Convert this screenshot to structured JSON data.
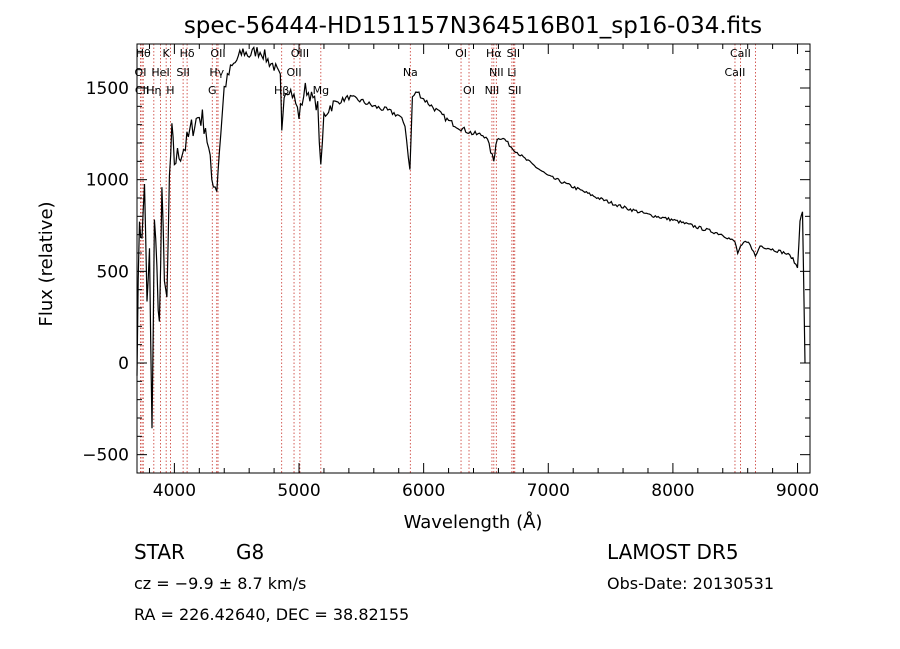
{
  "chart_data": {
    "type": "line",
    "title": "spec-56444-HD151157N364516B01_sp16-034.fits",
    "xlabel": "Wavelength (Å)",
    "ylabel": "Flux (relative)",
    "xlim": [
      3700,
      9100
    ],
    "ylim": [
      -600,
      1740
    ],
    "xticks": [
      4000,
      5000,
      6000,
      7000,
      8000,
      9000
    ],
    "xtick_labels": [
      "4000",
      "5000",
      "6000",
      "7000",
      "8000",
      "9000"
    ],
    "yticks": [
      -500,
      0,
      500,
      1000,
      1500
    ],
    "ytick_labels": [
      "−500",
      "0",
      "500",
      "1000",
      "1500"
    ],
    "grid": false,
    "series": [
      {
        "color": "#000000",
        "x": [
          3700,
          3720,
          3740,
          3760,
          3780,
          3800,
          3820,
          3840,
          3860,
          3880,
          3900,
          3920,
          3940,
          3960,
          3980,
          4000,
          4050,
          4100,
          4150,
          4200,
          4250,
          4300,
          4340,
          4360,
          4400,
          4450,
          4500,
          4550,
          4600,
          4650,
          4700,
          4750,
          4800,
          4850,
          4862,
          4880,
          4920,
          4960,
          5000,
          5050,
          5100,
          5150,
          5175,
          5200,
          5250,
          5300,
          5400,
          5500,
          5600,
          5700,
          5800,
          5850,
          5890,
          5910,
          5950,
          6000,
          6100,
          6200,
          6300,
          6400,
          6500,
          6563,
          6580,
          6600,
          6650,
          6700,
          6800,
          6900,
          7000,
          7200,
          7400,
          7600,
          7800,
          8000,
          8200,
          8400,
          8498,
          8520,
          8542,
          8580,
          8620,
          8662,
          8700,
          8800,
          8900,
          8950,
          9000,
          9020,
          9040,
          9060
        ],
        "y": [
          0,
          800,
          650,
          1000,
          300,
          600,
          -400,
          800,
          500,
          200,
          900,
          500,
          300,
          1000,
          1250,
          1100,
          1150,
          1200,
          1300,
          1350,
          1300,
          1000,
          950,
          1150,
          1500,
          1600,
          1650,
          1700,
          1680,
          1700,
          1700,
          1650,
          1620,
          1550,
          1250,
          1480,
          1500,
          1450,
          1350,
          1500,
          1450,
          1400,
          1050,
          1350,
          1400,
          1420,
          1450,
          1430,
          1400,
          1380,
          1350,
          1300,
          1050,
          1450,
          1480,
          1440,
          1380,
          1320,
          1280,
          1250,
          1240,
          1100,
          1200,
          1230,
          1220,
          1180,
          1120,
          1070,
          1020,
          960,
          900,
          850,
          810,
          780,
          740,
          700,
          660,
          600,
          630,
          660,
          650,
          580,
          640,
          620,
          600,
          580,
          520,
          780,
          820,
          0
        ]
      }
    ],
    "line_markers": [
      {
        "label": "Hθ",
        "x": 3750
      },
      {
        "label": "K",
        "x": 3934
      },
      {
        "label": "Hδ",
        "x": 4102
      },
      {
        "label": "OII",
        "x": 4350
      },
      {
        "label": "OIII",
        "x": 5007
      },
      {
        "label": "OI",
        "x": 6300
      },
      {
        "label": "Hα",
        "x": 6563
      },
      {
        "label": "SII",
        "x": 6720
      },
      {
        "label": "CaII",
        "x": 8542
      },
      {
        "label": "OI",
        "x": 3728
      },
      {
        "label": "HeI",
        "x": 3889
      },
      {
        "label": "SII",
        "x": 4070
      },
      {
        "label": "Hγ",
        "x": 4340
      },
      {
        "label": "OII",
        "x": 4960
      },
      {
        "label": "Na",
        "x": 5893
      },
      {
        "label": "NII",
        "x": 6583
      },
      {
        "label": "Li",
        "x": 6708
      },
      {
        "label": "CaII",
        "x": 8498
      },
      {
        "label": "CII",
        "x": 3740
      },
      {
        "label": "Hη",
        "x": 3835
      },
      {
        "label": "H",
        "x": 3968
      },
      {
        "label": "G",
        "x": 4304
      },
      {
        "label": "Hβ",
        "x": 4861
      },
      {
        "label": "Mg",
        "x": 5175
      },
      {
        "label": "OI",
        "x": 6364
      },
      {
        "label": "NII",
        "x": 6548
      },
      {
        "label": "SII",
        "x": 6731
      },
      {
        "label": "CaII",
        "x": 8662
      }
    ]
  },
  "footer": {
    "object_class": "STAR",
    "subclass": "G8",
    "cz": "cz = −9.9 ± 8.7 km/s",
    "radec": "RA = 226.42640, DEC =  38.82155",
    "survey": "LAMOST DR5",
    "obs_date": "Obs-Date: 20130531"
  }
}
